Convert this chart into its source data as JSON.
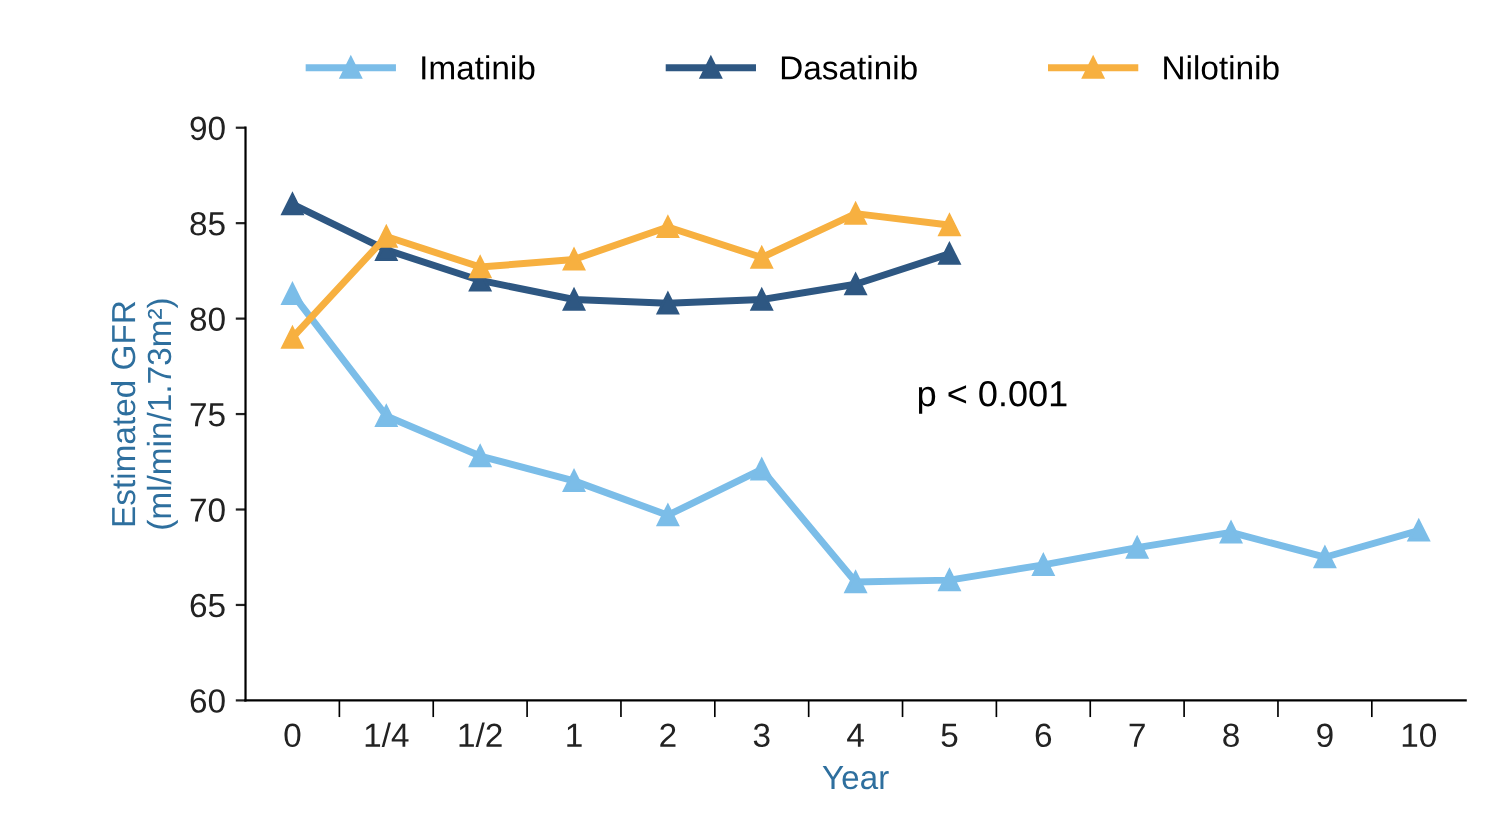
{
  "chart_data": {
    "type": "line",
    "xlabel": "Year",
    "ylabel": "Estimated GFR\n(ml/min/1.73m²)",
    "categories": [
      "0",
      "1/4",
      "1/2",
      "1",
      "2",
      "3",
      "4",
      "5",
      "6",
      "7",
      "8",
      "9",
      "10"
    ],
    "series": [
      {
        "name": "Imatinib",
        "color": "#7bbde8",
        "values": [
          81.3,
          74.9,
          72.8,
          71.5,
          69.7,
          72.1,
          66.2,
          66.3,
          67.1,
          68.0,
          68.8,
          67.5,
          68.9
        ]
      },
      {
        "name": "Dasatinib",
        "color": "#2e5782",
        "values": [
          86.0,
          83.6,
          82.0,
          81.0,
          80.8,
          81.0,
          81.8,
          83.4,
          null,
          null,
          null,
          null,
          null
        ]
      },
      {
        "name": "Nilotinib",
        "color": "#f7b040",
        "values": [
          79.0,
          84.3,
          82.7,
          83.1,
          84.8,
          83.2,
          85.5,
          84.9,
          null,
          null,
          null,
          null,
          null
        ]
      }
    ],
    "ylim": [
      60,
      90
    ],
    "yticks": [
      60,
      65,
      70,
      75,
      80,
      85,
      90
    ],
    "annotations": [
      "p < 0.001"
    ],
    "legend": "top",
    "marker": "triangle",
    "line_style": "solid",
    "grid": false
  }
}
